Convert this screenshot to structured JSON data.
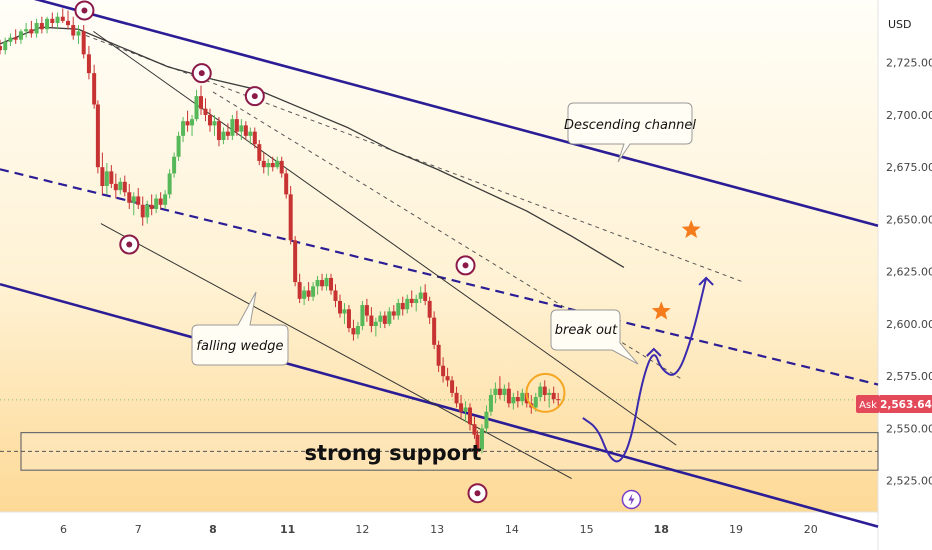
{
  "chart_data": {
    "type": "candlestick",
    "symbol_currency": "USD",
    "y_ticks": [
      "2,725.00",
      "2,700.00",
      "2,675.00",
      "2,650.00",
      "2,625.00",
      "2,600.00",
      "2,575.00",
      "2,550.00",
      "2,525.00"
    ],
    "y_tick_values": [
      2725,
      2700,
      2675,
      2650,
      2625,
      2600,
      2575,
      2550,
      2525
    ],
    "ylim": [
      2510,
      2755
    ],
    "x_ticks": [
      "6",
      "7",
      "8",
      "11",
      "12",
      "13",
      "14",
      "15",
      "18",
      "19",
      "20"
    ],
    "x_tick_index": [
      0,
      1,
      2,
      3,
      4,
      5,
      6,
      7,
      8,
      9,
      10
    ],
    "xlim": [
      -0.85,
      10.9
    ],
    "bold_x_ticks": [
      "8",
      "11",
      "18"
    ],
    "price_label": {
      "side": "Ask",
      "value": "2,563.64",
      "price": 2563.64
    },
    "candles": [
      {
        "t": -0.85,
        "o": 2733,
        "h": 2736,
        "l": 2729,
        "c": 2731
      },
      {
        "t": -0.78,
        "o": 2731,
        "h": 2737,
        "l": 2729,
        "c": 2735
      },
      {
        "t": -0.71,
        "o": 2735,
        "h": 2739,
        "l": 2733,
        "c": 2737
      },
      {
        "t": -0.64,
        "o": 2737,
        "h": 2741,
        "l": 2734,
        "c": 2736
      },
      {
        "t": -0.57,
        "o": 2736,
        "h": 2741,
        "l": 2734,
        "c": 2740
      },
      {
        "t": -0.5,
        "o": 2740,
        "h": 2744,
        "l": 2737,
        "c": 2741
      },
      {
        "t": -0.43,
        "o": 2741,
        "h": 2745,
        "l": 2737,
        "c": 2739
      },
      {
        "t": -0.36,
        "o": 2739,
        "h": 2746,
        "l": 2737,
        "c": 2744
      },
      {
        "t": -0.29,
        "o": 2744,
        "h": 2747,
        "l": 2739,
        "c": 2741
      },
      {
        "t": -0.22,
        "o": 2741,
        "h": 2747,
        "l": 2739,
        "c": 2746
      },
      {
        "t": -0.15,
        "o": 2746,
        "h": 2749,
        "l": 2742,
        "c": 2744
      },
      {
        "t": -0.08,
        "o": 2744,
        "h": 2749,
        "l": 2741,
        "c": 2747
      },
      {
        "t": -0.01,
        "o": 2747,
        "h": 2751,
        "l": 2744,
        "c": 2745
      },
      {
        "t": 0.06,
        "o": 2745,
        "h": 2750,
        "l": 2741,
        "c": 2743
      },
      {
        "t": 0.13,
        "o": 2743,
        "h": 2747,
        "l": 2736,
        "c": 2738
      },
      {
        "t": 0.2,
        "o": 2738,
        "h": 2743,
        "l": 2734,
        "c": 2740
      },
      {
        "t": 0.27,
        "o": 2740,
        "h": 2743,
        "l": 2727,
        "c": 2729
      },
      {
        "t": 0.34,
        "o": 2729,
        "h": 2733,
        "l": 2717,
        "c": 2720
      },
      {
        "t": 0.41,
        "o": 2720,
        "h": 2724,
        "l": 2703,
        "c": 2705
      },
      {
        "t": 0.46,
        "o": 2705,
        "h": 2707,
        "l": 2672,
        "c": 2675
      },
      {
        "t": 0.52,
        "o": 2675,
        "h": 2682,
        "l": 2662,
        "c": 2666
      },
      {
        "t": 0.58,
        "o": 2666,
        "h": 2677,
        "l": 2662,
        "c": 2673
      },
      {
        "t": 0.64,
        "o": 2673,
        "h": 2676,
        "l": 2665,
        "c": 2667
      },
      {
        "t": 0.7,
        "o": 2667,
        "h": 2672,
        "l": 2660,
        "c": 2664
      },
      {
        "t": 0.76,
        "o": 2664,
        "h": 2670,
        "l": 2662,
        "c": 2668
      },
      {
        "t": 0.82,
        "o": 2668,
        "h": 2671,
        "l": 2661,
        "c": 2663
      },
      {
        "t": 0.88,
        "o": 2663,
        "h": 2667,
        "l": 2655,
        "c": 2658
      },
      {
        "t": 0.94,
        "o": 2658,
        "h": 2663,
        "l": 2652,
        "c": 2661
      },
      {
        "t": 1.0,
        "o": 2661,
        "h": 2665,
        "l": 2655,
        "c": 2657
      },
      {
        "t": 1.06,
        "o": 2657,
        "h": 2661,
        "l": 2647,
        "c": 2651
      },
      {
        "t": 1.12,
        "o": 2651,
        "h": 2659,
        "l": 2648,
        "c": 2657
      },
      {
        "t": 1.18,
        "o": 2657,
        "h": 2662,
        "l": 2652,
        "c": 2655
      },
      {
        "t": 1.24,
        "o": 2655,
        "h": 2662,
        "l": 2653,
        "c": 2660
      },
      {
        "t": 1.3,
        "o": 2660,
        "h": 2663,
        "l": 2655,
        "c": 2657
      },
      {
        "t": 1.36,
        "o": 2657,
        "h": 2664,
        "l": 2655,
        "c": 2662
      },
      {
        "t": 1.42,
        "o": 2662,
        "h": 2674,
        "l": 2660,
        "c": 2672
      },
      {
        "t": 1.48,
        "o": 2672,
        "h": 2682,
        "l": 2670,
        "c": 2680
      },
      {
        "t": 1.54,
        "o": 2680,
        "h": 2692,
        "l": 2678,
        "c": 2690
      },
      {
        "t": 1.6,
        "o": 2690,
        "h": 2699,
        "l": 2687,
        "c": 2697
      },
      {
        "t": 1.66,
        "o": 2697,
        "h": 2702,
        "l": 2692,
        "c": 2695
      },
      {
        "t": 1.72,
        "o": 2695,
        "h": 2700,
        "l": 2690,
        "c": 2698
      },
      {
        "t": 1.78,
        "o": 2698,
        "h": 2712,
        "l": 2697,
        "c": 2709
      },
      {
        "t": 1.84,
        "o": 2709,
        "h": 2714,
        "l": 2700,
        "c": 2703
      },
      {
        "t": 1.9,
        "o": 2703,
        "h": 2708,
        "l": 2697,
        "c": 2700
      },
      {
        "t": 1.96,
        "o": 2700,
        "h": 2703,
        "l": 2692,
        "c": 2695
      },
      {
        "t": 2.02,
        "o": 2695,
        "h": 2700,
        "l": 2690,
        "c": 2697
      },
      {
        "t": 2.08,
        "o": 2697,
        "h": 2699,
        "l": 2685,
        "c": 2688
      },
      {
        "t": 2.14,
        "o": 2688,
        "h": 2694,
        "l": 2686,
        "c": 2692
      },
      {
        "t": 2.2,
        "o": 2692,
        "h": 2696,
        "l": 2688,
        "c": 2690
      },
      {
        "t": 2.26,
        "o": 2690,
        "h": 2700,
        "l": 2688,
        "c": 2698
      },
      {
        "t": 2.32,
        "o": 2698,
        "h": 2702,
        "l": 2690,
        "c": 2692
      },
      {
        "t": 2.38,
        "o": 2692,
        "h": 2698,
        "l": 2688,
        "c": 2695
      },
      {
        "t": 2.44,
        "o": 2695,
        "h": 2697,
        "l": 2688,
        "c": 2690
      },
      {
        "t": 2.5,
        "o": 2690,
        "h": 2694,
        "l": 2686,
        "c": 2692
      },
      {
        "t": 2.56,
        "o": 2692,
        "h": 2694,
        "l": 2684,
        "c": 2686
      },
      {
        "t": 2.62,
        "o": 2686,
        "h": 2688,
        "l": 2676,
        "c": 2678
      },
      {
        "t": 2.68,
        "o": 2678,
        "h": 2682,
        "l": 2672,
        "c": 2675
      },
      {
        "t": 2.74,
        "o": 2675,
        "h": 2679,
        "l": 2671,
        "c": 2677
      },
      {
        "t": 2.8,
        "o": 2677,
        "h": 2680,
        "l": 2673,
        "c": 2675
      },
      {
        "t": 2.86,
        "o": 2675,
        "h": 2680,
        "l": 2674,
        "c": 2678
      },
      {
        "t": 2.92,
        "o": 2678,
        "h": 2680,
        "l": 2670,
        "c": 2672
      },
      {
        "t": 2.98,
        "o": 2672,
        "h": 2674,
        "l": 2660,
        "c": 2662
      },
      {
        "t": 3.04,
        "o": 2662,
        "h": 2666,
        "l": 2638,
        "c": 2640
      },
      {
        "t": 3.1,
        "o": 2640,
        "h": 2642,
        "l": 2618,
        "c": 2620
      },
      {
        "t": 3.16,
        "o": 2620,
        "h": 2624,
        "l": 2610,
        "c": 2612
      },
      {
        "t": 3.22,
        "o": 2612,
        "h": 2618,
        "l": 2609,
        "c": 2616
      },
      {
        "t": 3.28,
        "o": 2616,
        "h": 2620,
        "l": 2611,
        "c": 2613
      },
      {
        "t": 3.34,
        "o": 2613,
        "h": 2620,
        "l": 2611,
        "c": 2618
      },
      {
        "t": 3.4,
        "o": 2618,
        "h": 2623,
        "l": 2614,
        "c": 2621
      },
      {
        "t": 3.46,
        "o": 2621,
        "h": 2624,
        "l": 2616,
        "c": 2618
      },
      {
        "t": 3.52,
        "o": 2618,
        "h": 2624,
        "l": 2616,
        "c": 2622
      },
      {
        "t": 3.58,
        "o": 2622,
        "h": 2624,
        "l": 2614,
        "c": 2616
      },
      {
        "t": 3.64,
        "o": 2616,
        "h": 2619,
        "l": 2608,
        "c": 2611
      },
      {
        "t": 3.7,
        "o": 2611,
        "h": 2614,
        "l": 2603,
        "c": 2605
      },
      {
        "t": 3.76,
        "o": 2605,
        "h": 2610,
        "l": 2600,
        "c": 2607
      },
      {
        "t": 3.82,
        "o": 2607,
        "h": 2609,
        "l": 2596,
        "c": 2598
      },
      {
        "t": 3.88,
        "o": 2598,
        "h": 2602,
        "l": 2592,
        "c": 2595
      },
      {
        "t": 3.94,
        "o": 2595,
        "h": 2601,
        "l": 2593,
        "c": 2599
      },
      {
        "t": 4.0,
        "o": 2599,
        "h": 2611,
        "l": 2597,
        "c": 2609
      },
      {
        "t": 4.06,
        "o": 2609,
        "h": 2612,
        "l": 2601,
        "c": 2604
      },
      {
        "t": 4.12,
        "o": 2604,
        "h": 2608,
        "l": 2596,
        "c": 2599
      },
      {
        "t": 4.18,
        "o": 2599,
        "h": 2603,
        "l": 2594,
        "c": 2601
      },
      {
        "t": 4.24,
        "o": 2601,
        "h": 2606,
        "l": 2598,
        "c": 2604
      },
      {
        "t": 4.3,
        "o": 2604,
        "h": 2606,
        "l": 2598,
        "c": 2600
      },
      {
        "t": 4.36,
        "o": 2600,
        "h": 2608,
        "l": 2599,
        "c": 2606
      },
      {
        "t": 4.42,
        "o": 2606,
        "h": 2609,
        "l": 2602,
        "c": 2604
      },
      {
        "t": 4.48,
        "o": 2604,
        "h": 2612,
        "l": 2602,
        "c": 2610
      },
      {
        "t": 4.54,
        "o": 2610,
        "h": 2613,
        "l": 2604,
        "c": 2607
      },
      {
        "t": 4.6,
        "o": 2607,
        "h": 2614,
        "l": 2605,
        "c": 2612
      },
      {
        "t": 4.66,
        "o": 2612,
        "h": 2616,
        "l": 2608,
        "c": 2610
      },
      {
        "t": 4.72,
        "o": 2610,
        "h": 2614,
        "l": 2606,
        "c": 2612
      },
      {
        "t": 4.78,
        "o": 2612,
        "h": 2618,
        "l": 2610,
        "c": 2615
      },
      {
        "t": 4.84,
        "o": 2615,
        "h": 2619,
        "l": 2609,
        "c": 2611
      },
      {
        "t": 4.9,
        "o": 2611,
        "h": 2613,
        "l": 2600,
        "c": 2603
      },
      {
        "t": 4.96,
        "o": 2603,
        "h": 2606,
        "l": 2588,
        "c": 2590
      },
      {
        "t": 5.02,
        "o": 2590,
        "h": 2592,
        "l": 2577,
        "c": 2580
      },
      {
        "t": 5.08,
        "o": 2580,
        "h": 2584,
        "l": 2572,
        "c": 2575
      },
      {
        "t": 5.14,
        "o": 2575,
        "h": 2579,
        "l": 2570,
        "c": 2573
      },
      {
        "t": 5.2,
        "o": 2573,
        "h": 2575,
        "l": 2565,
        "c": 2567
      },
      {
        "t": 5.26,
        "o": 2567,
        "h": 2570,
        "l": 2560,
        "c": 2562
      },
      {
        "t": 5.32,
        "o": 2562,
        "h": 2566,
        "l": 2555,
        "c": 2558
      },
      {
        "t": 5.38,
        "o": 2558,
        "h": 2563,
        "l": 2553,
        "c": 2560
      },
      {
        "t": 5.44,
        "o": 2560,
        "h": 2562,
        "l": 2549,
        "c": 2552
      },
      {
        "t": 5.5,
        "o": 2552,
        "h": 2556,
        "l": 2545,
        "c": 2547
      },
      {
        "t": 5.54,
        "o": 2547,
        "h": 2549,
        "l": 2538,
        "c": 2540
      },
      {
        "t": 5.6,
        "o": 2540,
        "h": 2552,
        "l": 2538,
        "c": 2550
      },
      {
        "t": 5.66,
        "o": 2550,
        "h": 2561,
        "l": 2548,
        "c": 2558
      },
      {
        "t": 5.72,
        "o": 2558,
        "h": 2569,
        "l": 2556,
        "c": 2566
      },
      {
        "t": 5.78,
        "o": 2566,
        "h": 2572,
        "l": 2562,
        "c": 2569
      },
      {
        "t": 5.84,
        "o": 2569,
        "h": 2575,
        "l": 2564,
        "c": 2566
      },
      {
        "t": 5.9,
        "o": 2566,
        "h": 2571,
        "l": 2563,
        "c": 2569
      },
      {
        "t": 5.96,
        "o": 2569,
        "h": 2572,
        "l": 2560,
        "c": 2562
      },
      {
        "t": 6.02,
        "o": 2562,
        "h": 2567,
        "l": 2559,
        "c": 2565
      },
      {
        "t": 6.08,
        "o": 2565,
        "h": 2568,
        "l": 2560,
        "c": 2563
      },
      {
        "t": 6.14,
        "o": 2563,
        "h": 2569,
        "l": 2561,
        "c": 2567
      },
      {
        "t": 6.2,
        "o": 2567,
        "h": 2570,
        "l": 2560,
        "c": 2562
      },
      {
        "t": 6.26,
        "o": 2562,
        "h": 2566,
        "l": 2557,
        "c": 2560
      },
      {
        "t": 6.32,
        "o": 2560,
        "h": 2567,
        "l": 2558,
        "c": 2565
      },
      {
        "t": 6.38,
        "o": 2565,
        "h": 2572,
        "l": 2563,
        "c": 2570
      },
      {
        "t": 6.44,
        "o": 2570,
        "h": 2573,
        "l": 2563,
        "c": 2566
      },
      {
        "t": 6.5,
        "o": 2566,
        "h": 2569,
        "l": 2560,
        "c": 2567
      },
      {
        "t": 6.56,
        "o": 2567,
        "h": 2570,
        "l": 2562,
        "c": 2564
      },
      {
        "t": 6.62,
        "o": 2564,
        "h": 2567,
        "l": 2561,
        "c": 2563.64
      }
    ],
    "ma_line": [
      {
        "t": -0.85,
        "v": 2734
      },
      {
        "t": -0.3,
        "v": 2742
      },
      {
        "t": 0.2,
        "v": 2741
      },
      {
        "t": 0.8,
        "v": 2732
      },
      {
        "t": 1.4,
        "v": 2723
      },
      {
        "t": 2.0,
        "v": 2717
      },
      {
        "t": 2.6,
        "v": 2712
      },
      {
        "t": 3.2,
        "v": 2703
      },
      {
        "t": 3.8,
        "v": 2694
      },
      {
        "t": 4.4,
        "v": 2683
      },
      {
        "t": 5.0,
        "v": 2674
      },
      {
        "t": 5.6,
        "v": 2664
      },
      {
        "t": 6.2,
        "v": 2654
      },
      {
        "t": 6.8,
        "v": 2642
      },
      {
        "t": 7.5,
        "v": 2627
      }
    ],
    "trendlines": {
      "channel_upper": {
        "t1": -0.85,
        "v1": 2760,
        "t2": 10.9,
        "v2": 2647
      },
      "channel_lower": {
        "t1": -0.85,
        "v1": 2619,
        "t2": 10.9,
        "v2": 2503
      },
      "channel_mid": {
        "t1": -0.85,
        "v1": 2674,
        "t2": 10.9,
        "v2": 2571
      },
      "wedge_upper": {
        "t1": 0.4,
        "v1": 2740,
        "t2": 8.2,
        "v2": 2542
      },
      "wedge_lower": {
        "t1": 0.5,
        "v1": 2648,
        "t2": 6.8,
        "v2": 2526
      },
      "dotted_1": {
        "t1": 0.3,
        "v1": 2738,
        "t2": 9.1,
        "v2": 2620
      },
      "dotted_2": {
        "t1": 2.0,
        "v1": 2711,
        "t2": 8.3,
        "v2": 2573
      }
    },
    "support_zone": {
      "low": 2530,
      "high": 2548,
      "mid": 2539
    },
    "pivot_markers": [
      {
        "t": 0.28,
        "v": 2750,
        "kind": "pivot",
        "pos": "above"
      },
      {
        "t": 1.85,
        "v": 2720,
        "kind": "pivot",
        "pos": "above"
      },
      {
        "t": 2.56,
        "v": 2709,
        "kind": "pivot",
        "pos": "above"
      },
      {
        "t": 0.88,
        "v": 2638,
        "kind": "pivot",
        "pos": "below"
      },
      {
        "t": 5.38,
        "v": 2628,
        "kind": "pivot",
        "pos": "above"
      },
      {
        "t": 5.54,
        "v": 2519,
        "kind": "pivot",
        "pos": "below"
      },
      {
        "t": 7.6,
        "v": 2516,
        "kind": "lightning",
        "pos": "below"
      }
    ],
    "breakout_circle": {
      "t": 6.45,
      "v": 2567
    },
    "projection_path": [
      {
        "t": 6.95,
        "v": 2555
      },
      {
        "t": 7.15,
        "v": 2550
      },
      {
        "t": 7.3,
        "v": 2536
      },
      {
        "t": 7.45,
        "v": 2533
      },
      {
        "t": 7.6,
        "v": 2545
      },
      {
        "t": 7.75,
        "v": 2574
      },
      {
        "t": 7.9,
        "v": 2588
      },
      {
        "t": 8.0,
        "v": 2578
      },
      {
        "t": 8.2,
        "v": 2574
      },
      {
        "t": 8.4,
        "v": 2592
      },
      {
        "t": 8.6,
        "v": 2622
      }
    ],
    "stars": [
      {
        "t": 8.0,
        "v": 2606
      },
      {
        "t": 8.4,
        "v": 2645
      }
    ],
    "annotations": {
      "descending_channel": "Descending channel",
      "falling_wedge": "falling wedge",
      "break_out": "break out",
      "strong_support": "strong support"
    }
  },
  "colors": {
    "bg_top": "#fffef8",
    "bg_bottom": "#fddc96",
    "up": "#57b85a",
    "down": "#c73232",
    "channel": "#2b1d95",
    "wedge": "#333333",
    "ma": "#3a3a3a",
    "marker": "#8b1a48",
    "projection": "#3b2aae",
    "star": "#f57c1c",
    "ask": "#e4495a",
    "breakout": "#f5a623"
  }
}
